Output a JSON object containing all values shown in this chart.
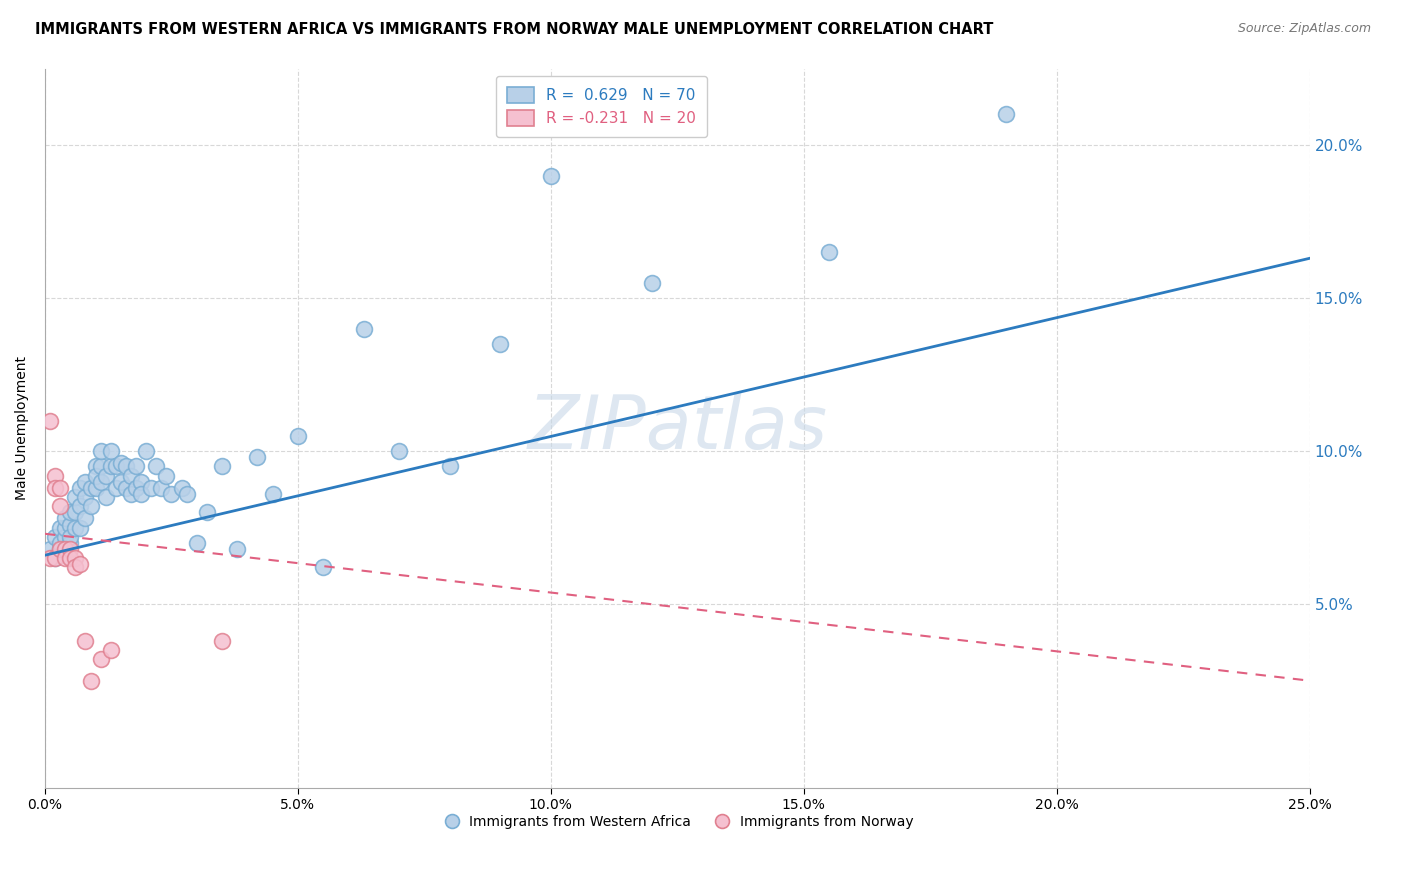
{
  "title": "IMMIGRANTS FROM WESTERN AFRICA VS IMMIGRANTS FROM NORWAY MALE UNEMPLOYMENT CORRELATION CHART",
  "source": "Source: ZipAtlas.com",
  "ylabel": "Male Unemployment",
  "watermark": "ZIPatlas",
  "xlim": [
    0.0,
    0.25
  ],
  "ylim": [
    -0.01,
    0.225
  ],
  "xticks": [
    0.0,
    0.05,
    0.1,
    0.15,
    0.2,
    0.25
  ],
  "yticks_right": [
    0.05,
    0.1,
    0.15,
    0.2
  ],
  "blue_R": 0.629,
  "blue_N": 70,
  "pink_R": -0.231,
  "pink_N": 20,
  "blue_color": "#b8d0e8",
  "blue_edge": "#7aaed4",
  "pink_color": "#f5c0d0",
  "pink_edge": "#e08090",
  "blue_line_color": "#2c7bbf",
  "pink_line_color": "#e06080",
  "background_color": "#ffffff",
  "grid_color": "#d8d8d8",
  "label_blue": "Immigrants from Western Africa",
  "label_pink": "Immigrants from Norway",
  "blue_scatter_x": [
    0.001,
    0.002,
    0.002,
    0.003,
    0.003,
    0.003,
    0.004,
    0.004,
    0.004,
    0.005,
    0.005,
    0.005,
    0.005,
    0.006,
    0.006,
    0.006,
    0.007,
    0.007,
    0.007,
    0.008,
    0.008,
    0.008,
    0.009,
    0.009,
    0.01,
    0.01,
    0.01,
    0.011,
    0.011,
    0.011,
    0.012,
    0.012,
    0.013,
    0.013,
    0.014,
    0.014,
    0.015,
    0.015,
    0.016,
    0.016,
    0.017,
    0.017,
    0.018,
    0.018,
    0.019,
    0.019,
    0.02,
    0.021,
    0.022,
    0.023,
    0.024,
    0.025,
    0.027,
    0.028,
    0.03,
    0.032,
    0.035,
    0.038,
    0.042,
    0.045,
    0.05,
    0.055,
    0.063,
    0.07,
    0.08,
    0.09,
    0.1,
    0.12,
    0.155,
    0.19
  ],
  "blue_scatter_y": [
    0.068,
    0.065,
    0.072,
    0.068,
    0.075,
    0.07,
    0.072,
    0.075,
    0.078,
    0.07,
    0.076,
    0.072,
    0.08,
    0.075,
    0.08,
    0.085,
    0.075,
    0.082,
    0.088,
    0.078,
    0.085,
    0.09,
    0.082,
    0.088,
    0.088,
    0.095,
    0.092,
    0.09,
    0.095,
    0.1,
    0.085,
    0.092,
    0.095,
    0.1,
    0.088,
    0.095,
    0.09,
    0.096,
    0.088,
    0.095,
    0.086,
    0.092,
    0.095,
    0.088,
    0.09,
    0.086,
    0.1,
    0.088,
    0.095,
    0.088,
    0.092,
    0.086,
    0.088,
    0.086,
    0.07,
    0.08,
    0.095,
    0.068,
    0.098,
    0.086,
    0.105,
    0.062,
    0.14,
    0.1,
    0.095,
    0.135,
    0.19,
    0.155,
    0.165,
    0.21
  ],
  "pink_scatter_x": [
    0.001,
    0.001,
    0.002,
    0.002,
    0.002,
    0.003,
    0.003,
    0.003,
    0.004,
    0.004,
    0.005,
    0.005,
    0.006,
    0.006,
    0.007,
    0.008,
    0.009,
    0.011,
    0.013,
    0.035
  ],
  "pink_scatter_y": [
    0.11,
    0.065,
    0.092,
    0.088,
    0.065,
    0.088,
    0.082,
    0.068,
    0.068,
    0.065,
    0.068,
    0.065,
    0.065,
    0.062,
    0.063,
    0.038,
    0.025,
    0.032,
    0.035,
    0.038
  ],
  "blue_line_x0": 0.0,
  "blue_line_y0": 0.066,
  "blue_line_x1": 0.25,
  "blue_line_y1": 0.163,
  "pink_line_x0": 0.0,
  "pink_line_y0": 0.073,
  "pink_line_x1": 0.25,
  "pink_line_y1": 0.025,
  "title_fontsize": 10.5,
  "source_fontsize": 9,
  "label_fontsize": 10,
  "tick_fontsize": 10,
  "legend_fontsize": 11
}
